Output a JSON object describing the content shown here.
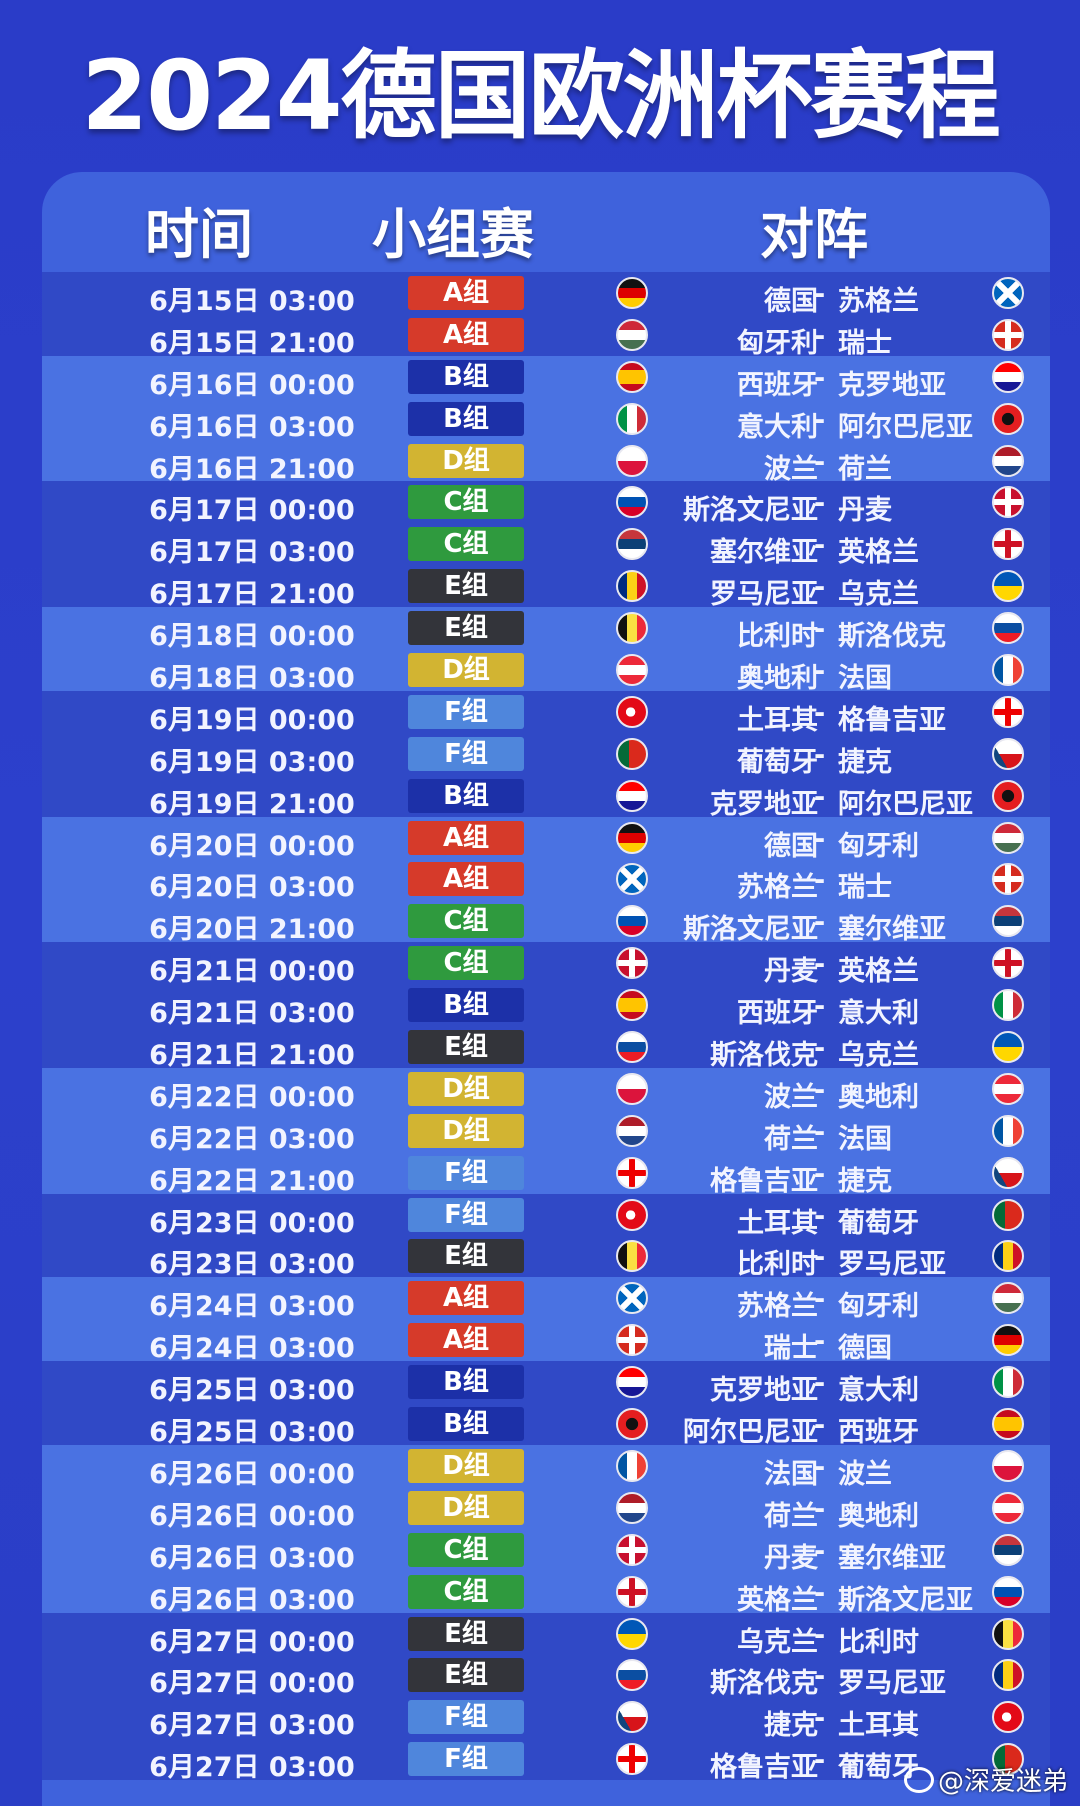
{
  "title": "2024德国欧洲杯赛程",
  "headers": {
    "time": "时间",
    "group": "小组赛",
    "match": "对阵"
  },
  "group_colors": {
    "A": "#d63a2a",
    "B": "#1c30a8",
    "C": "#2f9a3e",
    "D": "#d2b432",
    "E": "#33343a",
    "F": "#4f86dc"
  },
  "watermark": "@深爱迷弟",
  "matches": [
    {
      "time": "6月15日 03:00",
      "group": "A",
      "group_label": "A组",
      "home": "德国",
      "away": "苏格兰",
      "home_flag": "germany",
      "away_flag": "scotland"
    },
    {
      "time": "6月15日 21:00",
      "group": "A",
      "group_label": "A组",
      "home": "匈牙利",
      "away": "瑞士",
      "home_flag": "hungary",
      "away_flag": "switzerland"
    },
    {
      "time": "6月16日 00:00",
      "group": "B",
      "group_label": "B组",
      "home": "西班牙",
      "away": "克罗地亚",
      "home_flag": "spain",
      "away_flag": "croatia"
    },
    {
      "time": "6月16日 03:00",
      "group": "B",
      "group_label": "B组",
      "home": "意大利",
      "away": "阿尔巴尼亚",
      "home_flag": "italy",
      "away_flag": "albania"
    },
    {
      "time": "6月16日 21:00",
      "group": "D",
      "group_label": "D组",
      "home": "波兰",
      "away": "荷兰",
      "home_flag": "poland",
      "away_flag": "netherlands"
    },
    {
      "time": "6月17日 00:00",
      "group": "C",
      "group_label": "C组",
      "home": "斯洛文尼亚",
      "away": "丹麦",
      "home_flag": "slovenia",
      "away_flag": "denmark"
    },
    {
      "time": "6月17日 03:00",
      "group": "C",
      "group_label": "C组",
      "home": "塞尔维亚",
      "away": "英格兰",
      "home_flag": "serbia",
      "away_flag": "england"
    },
    {
      "time": "6月17日 21:00",
      "group": "E",
      "group_label": "E组",
      "home": "罗马尼亚",
      "away": "乌克兰",
      "home_flag": "romania",
      "away_flag": "ukraine"
    },
    {
      "time": "6月18日 00:00",
      "group": "E",
      "group_label": "E组",
      "home": "比利时",
      "away": "斯洛伐克",
      "home_flag": "belgium",
      "away_flag": "slovakia"
    },
    {
      "time": "6月18日 03:00",
      "group": "D",
      "group_label": "D组",
      "home": "奥地利",
      "away": "法国",
      "home_flag": "austria",
      "away_flag": "france"
    },
    {
      "time": "6月19日 00:00",
      "group": "F",
      "group_label": "F组",
      "home": "土耳其",
      "away": "格鲁吉亚",
      "home_flag": "turkey",
      "away_flag": "georgia"
    },
    {
      "time": "6月19日 03:00",
      "group": "F",
      "group_label": "F组",
      "home": "葡萄牙",
      "away": "捷克",
      "home_flag": "portugal",
      "away_flag": "czechia"
    },
    {
      "time": "6月19日 21:00",
      "group": "B",
      "group_label": "B组",
      "home": "克罗地亚",
      "away": "阿尔巴尼亚",
      "home_flag": "croatia",
      "away_flag": "albania"
    },
    {
      "time": "6月20日 00:00",
      "group": "A",
      "group_label": "A组",
      "home": "德国",
      "away": "匈牙利",
      "home_flag": "germany",
      "away_flag": "hungary"
    },
    {
      "time": "6月20日 03:00",
      "group": "A",
      "group_label": "A组",
      "home": "苏格兰",
      "away": "瑞士",
      "home_flag": "scotland",
      "away_flag": "switzerland"
    },
    {
      "time": "6月20日 21:00",
      "group": "C",
      "group_label": "C组",
      "home": "斯洛文尼亚",
      "away": "塞尔维亚",
      "home_flag": "slovenia",
      "away_flag": "serbia"
    },
    {
      "time": "6月21日 00:00",
      "group": "C",
      "group_label": "C组",
      "home": "丹麦",
      "away": "英格兰",
      "home_flag": "denmark",
      "away_flag": "england"
    },
    {
      "time": "6月21日 03:00",
      "group": "B",
      "group_label": "B组",
      "home": "西班牙",
      "away": "意大利",
      "home_flag": "spain",
      "away_flag": "italy"
    },
    {
      "time": "6月21日 21:00",
      "group": "E",
      "group_label": "E组",
      "home": "斯洛伐克",
      "away": "乌克兰",
      "home_flag": "slovakia",
      "away_flag": "ukraine"
    },
    {
      "time": "6月22日 00:00",
      "group": "D",
      "group_label": "D组",
      "home": "波兰",
      "away": "奥地利",
      "home_flag": "poland",
      "away_flag": "austria"
    },
    {
      "time": "6月22日 03:00",
      "group": "D",
      "group_label": "D组",
      "home": "荷兰",
      "away": "法国",
      "home_flag": "netherlands",
      "away_flag": "france"
    },
    {
      "time": "6月22日 21:00",
      "group": "F",
      "group_label": "F组",
      "home": "格鲁吉亚",
      "away": "捷克",
      "home_flag": "georgia",
      "away_flag": "czechia"
    },
    {
      "time": "6月23日 00:00",
      "group": "F",
      "group_label": "F组",
      "home": "土耳其",
      "away": "葡萄牙",
      "home_flag": "turkey",
      "away_flag": "portugal"
    },
    {
      "time": "6月23日 03:00",
      "group": "E",
      "group_label": "E组",
      "home": "比利时",
      "away": "罗马尼亚",
      "home_flag": "belgium",
      "away_flag": "romania"
    },
    {
      "time": "6月24日 03:00",
      "group": "A",
      "group_label": "A组",
      "home": "苏格兰",
      "away": "匈牙利",
      "home_flag": "scotland",
      "away_flag": "hungary"
    },
    {
      "time": "6月24日 03:00",
      "group": "A",
      "group_label": "A组",
      "home": "瑞士",
      "away": "德国",
      "home_flag": "switzerland",
      "away_flag": "germany"
    },
    {
      "time": "6月25日 03:00",
      "group": "B",
      "group_label": "B组",
      "home": "克罗地亚",
      "away": "意大利",
      "home_flag": "croatia",
      "away_flag": "italy"
    },
    {
      "time": "6月25日 03:00",
      "group": "B",
      "group_label": "B组",
      "home": "阿尔巴尼亚",
      "away": "西班牙",
      "home_flag": "albania",
      "away_flag": "spain"
    },
    {
      "time": "6月26日 00:00",
      "group": "D",
      "group_label": "D组",
      "home": "法国",
      "away": "波兰",
      "home_flag": "france",
      "away_flag": "poland"
    },
    {
      "time": "6月26日 00:00",
      "group": "D",
      "group_label": "D组",
      "home": "荷兰",
      "away": "奥地利",
      "home_flag": "netherlands",
      "away_flag": "austria"
    },
    {
      "time": "6月26日 03:00",
      "group": "C",
      "group_label": "C组",
      "home": "丹麦",
      "away": "塞尔维亚",
      "home_flag": "denmark",
      "away_flag": "serbia"
    },
    {
      "time": "6月26日 03:00",
      "group": "C",
      "group_label": "C组",
      "home": "英格兰",
      "away": "斯洛文尼亚",
      "home_flag": "england",
      "away_flag": "slovenia"
    },
    {
      "time": "6月27日 00:00",
      "group": "E",
      "group_label": "E组",
      "home": "乌克兰",
      "away": "比利时",
      "home_flag": "ukraine",
      "away_flag": "belgium"
    },
    {
      "time": "6月27日 00:00",
      "group": "E",
      "group_label": "E组",
      "home": "斯洛伐克",
      "away": "罗马尼亚",
      "home_flag": "slovakia",
      "away_flag": "romania"
    },
    {
      "time": "6月27日 03:00",
      "group": "F",
      "group_label": "F组",
      "home": "捷克",
      "away": "土耳其",
      "home_flag": "czechia",
      "away_flag": "turkey"
    },
    {
      "time": "6月27日 03:00",
      "group": "F",
      "group_label": "F组",
      "home": "格鲁吉亚",
      "away": "葡萄牙",
      "home_flag": "georgia",
      "away_flag": "portugal"
    }
  ]
}
